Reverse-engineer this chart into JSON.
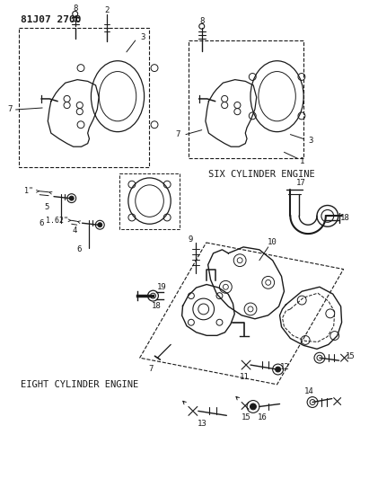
{
  "title": "81J07 2700",
  "bg": "#ffffff",
  "lc": "#1a1a1a",
  "six_cyl": "SIX CYLINDER ENGINE",
  "eight_cyl": "EIGHT CYLINDER ENGINE",
  "fig_w": 4.11,
  "fig_h": 5.33,
  "dpi": 100
}
